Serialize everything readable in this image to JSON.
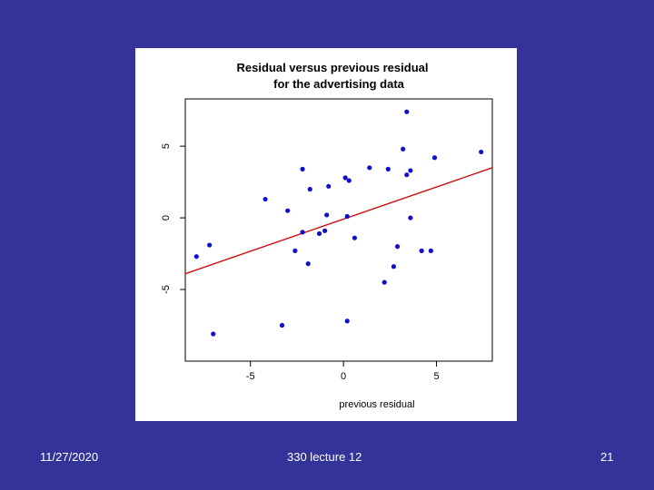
{
  "footer": {
    "date": "11/27/2020",
    "course": "330 lecture 12",
    "slide_number": "21"
  },
  "colors": {
    "background": "#333399",
    "points": "#1010cc",
    "fit_line": "#cc1111"
  },
  "chart_data": {
    "type": "scatter",
    "title": "Residual versus previous residual",
    "subtitle": "for the advertising data",
    "xlabel": "previous residual",
    "ylabel": "",
    "xlim": [
      -8.5,
      8.0
    ],
    "ylim": [
      -10.0,
      8.3
    ],
    "xticks": [
      -5,
      0,
      5
    ],
    "xtick_labels": [
      "-5",
      "0",
      "5"
    ],
    "yticks": [
      -5,
      0,
      5
    ],
    "ytick_labels": [
      "-5",
      "0",
      "5"
    ],
    "grid": false,
    "fit_line": {
      "x": [
        -8.5,
        8.0
      ],
      "y": [
        -3.9,
        3.5
      ]
    },
    "points": [
      {
        "x": 3.4,
        "y": 7.4
      },
      {
        "x": 3.2,
        "y": 4.8
      },
      {
        "x": 7.4,
        "y": 4.6
      },
      {
        "x": 4.9,
        "y": 4.2
      },
      {
        "x": 1.4,
        "y": 3.5
      },
      {
        "x": 2.4,
        "y": 3.4
      },
      {
        "x": -2.2,
        "y": 3.4
      },
      {
        "x": 3.6,
        "y": 3.3
      },
      {
        "x": 3.4,
        "y": 3.0
      },
      {
        "x": 0.1,
        "y": 2.8
      },
      {
        "x": 0.3,
        "y": 2.6
      },
      {
        "x": -0.8,
        "y": 2.2
      },
      {
        "x": -1.8,
        "y": 2.0
      },
      {
        "x": -4.2,
        "y": 1.3
      },
      {
        "x": -3.0,
        "y": 0.5
      },
      {
        "x": -0.9,
        "y": 0.2
      },
      {
        "x": 0.2,
        "y": 0.1
      },
      {
        "x": 3.6,
        "y": 0.0
      },
      {
        "x": -1.0,
        "y": -0.9
      },
      {
        "x": -2.2,
        "y": -1.0
      },
      {
        "x": -1.3,
        "y": -1.1
      },
      {
        "x": 0.6,
        "y": -1.4
      },
      {
        "x": -7.2,
        "y": -1.9
      },
      {
        "x": 2.9,
        "y": -2.0
      },
      {
        "x": -2.6,
        "y": -2.3
      },
      {
        "x": 4.2,
        "y": -2.3
      },
      {
        "x": 4.7,
        "y": -2.3
      },
      {
        "x": -7.9,
        "y": -2.7
      },
      {
        "x": -1.9,
        "y": -3.2
      },
      {
        "x": 2.7,
        "y": -3.4
      },
      {
        "x": 2.2,
        "y": -4.5
      },
      {
        "x": -3.3,
        "y": -7.5
      },
      {
        "x": 0.2,
        "y": -7.2
      },
      {
        "x": -7.0,
        "y": -8.1
      }
    ]
  }
}
